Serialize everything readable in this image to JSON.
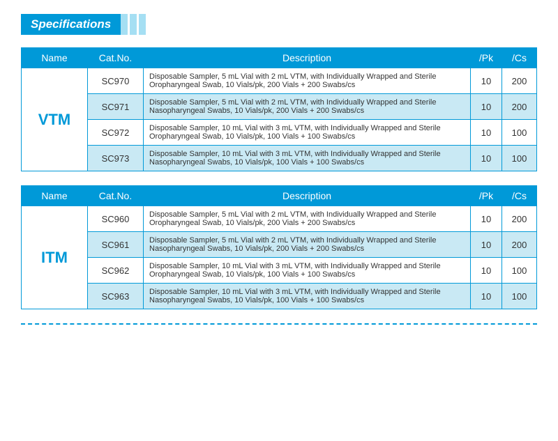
{
  "title": "Specifications",
  "colors": {
    "primary": "#0099d8",
    "light": "#a5dff3",
    "alt_row": "#c9e9f4",
    "text": "#333333",
    "white": "#ffffff"
  },
  "headers": {
    "name": "Name",
    "cat": "Cat.No.",
    "desc": "Description",
    "pk": "/Pk",
    "cs": "/Cs"
  },
  "tables": [
    {
      "name": "VTM",
      "rows": [
        {
          "cat": "SC970",
          "desc": "Disposable Sampler, 5 mL Vial with 2 mL VTM, with Individually Wrapped and Sterile Oropharyngeal Swab, 10 Vials/pk, 200 Vials + 200 Swabs/cs",
          "pk": "10",
          "cs": "200"
        },
        {
          "cat": "SC971",
          "desc": "Disposable Sampler, 5 mL Vial with 2 mL VTM, with Individually Wrapped and Sterile Nasopharyngeal Swabs, 10 Vials/pk, 200 Vials + 200 Swabs/cs",
          "pk": "10",
          "cs": "200"
        },
        {
          "cat": "SC972",
          "desc": "Disposable Sampler, 10 mL Vial with 3 mL VTM, with Individually Wrapped and Sterile Oropharyngeal Swab, 10 Vials/pk, 100 Vials + 100 Swabs/cs",
          "pk": "10",
          "cs": "100"
        },
        {
          "cat": "SC973",
          "desc": "Disposable Sampler, 10 mL Vial with 3 mL VTM, with Individually Wrapped and Sterile Nasopharyngeal Swabs, 10 Vials/pk, 100 Vials + 100 Swabs/cs",
          "pk": "10",
          "cs": "100"
        }
      ]
    },
    {
      "name": "ITM",
      "rows": [
        {
          "cat": "SC960",
          "desc": "Disposable Sampler, 5 mL Vial with 2 mL VTM, with Individually Wrapped and Sterile Oropharyngeal Swab, 10 Vials/pk, 200 Vials + 200 Swabs/cs",
          "pk": "10",
          "cs": "200"
        },
        {
          "cat": "SC961",
          "desc": "Disposable Sampler, 5 mL Vial with 2 mL VTM, with Individually Wrapped and Sterile Nasopharyngeal Swabs, 10 Vials/pk, 200 Vials + 200 Swabs/cs",
          "pk": "10",
          "cs": "200"
        },
        {
          "cat": "SC962",
          "desc": "Disposable Sampler, 10 mL Vial with 3 mL VTM, with Individually Wrapped and Sterile Oropharyngeal Swab, 10 Vials/pk, 100 Vials + 100 Swabs/cs",
          "pk": "10",
          "cs": "100"
        },
        {
          "cat": "SC963",
          "desc": "Disposable Sampler, 10 mL Vial with 3 mL VTM, with Individually Wrapped and Sterile Nasopharyngeal Swabs, 10 Vials/pk, 100 Vials + 100 Swabs/cs",
          "pk": "10",
          "cs": "100"
        }
      ]
    }
  ]
}
